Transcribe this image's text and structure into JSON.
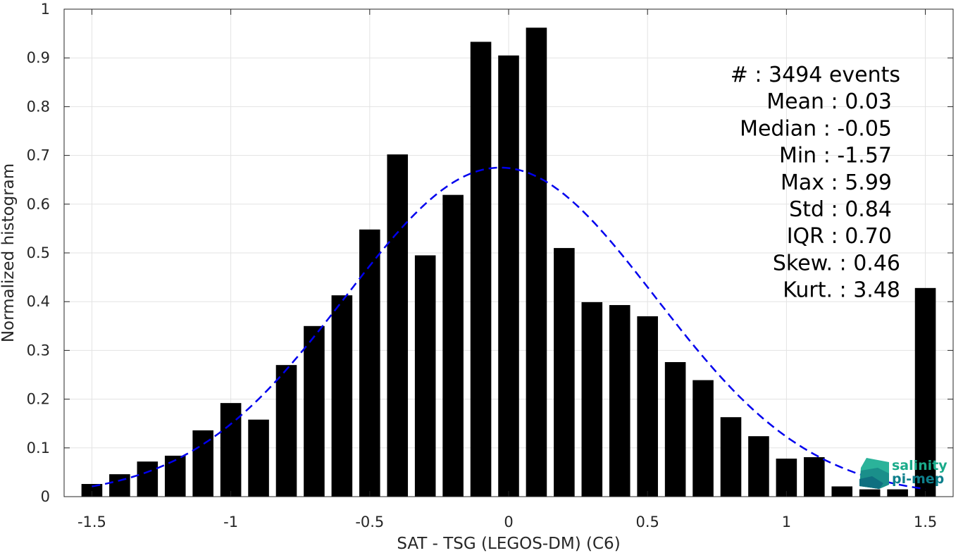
{
  "chart_data": {
    "type": "bar",
    "xlabel": "SAT - TSG (LEGOS-DM) (C6)",
    "ylabel": "Normalized histogram",
    "xlim": [
      -1.6,
      1.6
    ],
    "ylim": [
      0,
      1
    ],
    "grid": true,
    "x_ticks": [
      "-1.5",
      "-1",
      "-0.5",
      "0",
      "0.5",
      "1",
      "1.5"
    ],
    "x_tick_values": [
      -1.5,
      -1,
      -0.5,
      0,
      0.5,
      1,
      1.5
    ],
    "y_ticks": [
      "0",
      "0.1",
      "0.2",
      "0.3",
      "0.4",
      "0.5",
      "0.6",
      "0.7",
      "0.8",
      "0.9",
      "1"
    ],
    "y_tick_values": [
      0,
      0.1,
      0.2,
      0.3,
      0.4,
      0.5,
      0.6,
      0.7,
      0.8,
      0.9,
      1
    ],
    "bar_color": "#000000",
    "bar_width": 0.075,
    "bins": [
      {
        "x": -1.5,
        "value": 0.026
      },
      {
        "x": -1.4,
        "value": 0.046
      },
      {
        "x": -1.3,
        "value": 0.072
      },
      {
        "x": -1.2,
        "value": 0.084
      },
      {
        "x": -1.1,
        "value": 0.136
      },
      {
        "x": -1.0,
        "value": 0.192
      },
      {
        "x": -0.9,
        "value": 0.158
      },
      {
        "x": -0.8,
        "value": 0.27
      },
      {
        "x": -0.7,
        "value": 0.35
      },
      {
        "x": -0.6,
        "value": 0.413
      },
      {
        "x": -0.5,
        "value": 0.548
      },
      {
        "x": -0.4,
        "value": 0.702
      },
      {
        "x": -0.3,
        "value": 0.495
      },
      {
        "x": -0.2,
        "value": 0.619
      },
      {
        "x": -0.1,
        "value": 0.933
      },
      {
        "x": 0.0,
        "value": 0.905
      },
      {
        "x": 0.1,
        "value": 0.962
      },
      {
        "x": 0.2,
        "value": 0.51
      },
      {
        "x": 0.3,
        "value": 0.399
      },
      {
        "x": 0.4,
        "value": 0.393
      },
      {
        "x": 0.5,
        "value": 0.37
      },
      {
        "x": 0.6,
        "value": 0.276
      },
      {
        "x": 0.7,
        "value": 0.239
      },
      {
        "x": 0.8,
        "value": 0.163
      },
      {
        "x": 0.9,
        "value": 0.124
      },
      {
        "x": 1.0,
        "value": 0.078
      },
      {
        "x": 1.1,
        "value": 0.081
      },
      {
        "x": 1.2,
        "value": 0.021
      },
      {
        "x": 1.3,
        "value": 0.015
      },
      {
        "x": 1.4,
        "value": 0.015
      },
      {
        "x": 1.5,
        "value": 0.428
      }
    ],
    "fit_curve": {
      "type": "gaussian",
      "color": "#0000ee",
      "style": "dashed",
      "mean": -0.03,
      "sigma": 0.558,
      "peak": 0.675,
      "x_range": [
        -1.5,
        1.5
      ]
    },
    "stats": [
      {
        "id": "count",
        "text": "#  : 3494 events"
      },
      {
        "id": "mean",
        "text": "Mean : 0.03"
      },
      {
        "id": "median",
        "text": "Median : -0.05"
      },
      {
        "id": "min",
        "text": "Min : -1.57"
      },
      {
        "id": "max",
        "text": "Max : 5.99"
      },
      {
        "id": "std",
        "text": "Std : 0.84"
      },
      {
        "id": "iqr",
        "text": "IQR : 0.70"
      },
      {
        "id": "skew",
        "text": "Skew. : 0.46"
      },
      {
        "id": "kurt",
        "text": "Kurt. : 3.48"
      }
    ],
    "stats_anchor": "top-right"
  },
  "logo": {
    "line1": "salinity",
    "line2": "pi-mep",
    "color1": "#1aab8a",
    "color2": "#0e7f8c"
  }
}
